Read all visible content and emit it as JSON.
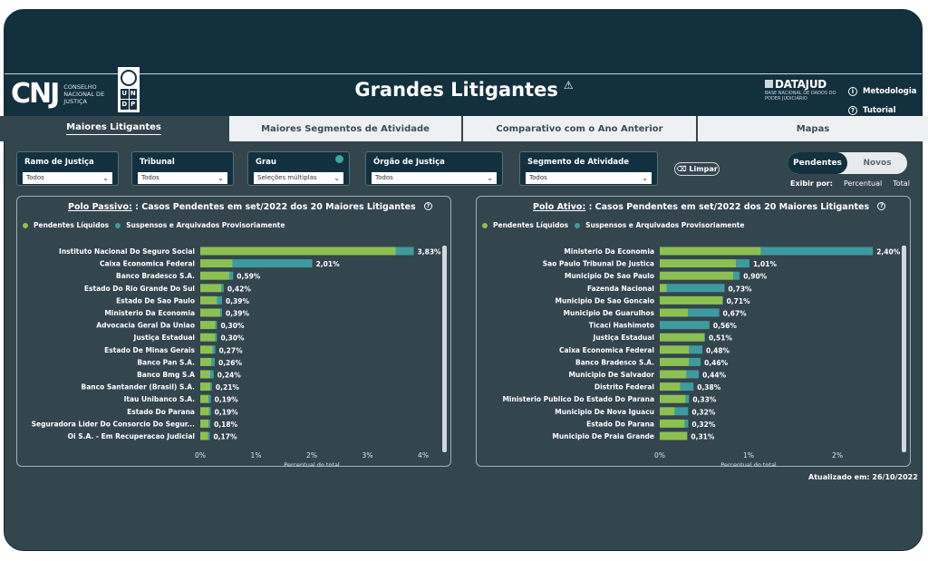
{
  "header": {
    "cnj_mark": "CNJ",
    "cnj_text": "CONSELHO NACIONAL DE JUSTIÇA",
    "undp_letters": [
      "U",
      "N",
      "D",
      "P"
    ],
    "title": "Grandes Litigantes",
    "title_icon": "warning-icon",
    "datajud_brand": "DATAJUD",
    "datajud_sub": "BASE NACIONAL DE DADOS DO PODER JUDICIÁRIO",
    "links": [
      {
        "label": "Metodologia",
        "icon": "info-icon"
      },
      {
        "label": "Tutorial",
        "icon": "help-icon"
      }
    ]
  },
  "tabs": [
    {
      "label": "Maiores Litigantes",
      "active": true
    },
    {
      "label": "Maiores Segmentos de Atividade",
      "active": false
    },
    {
      "label": "Comparativo com o Ano Anterior",
      "active": false
    },
    {
      "label": "Mapas",
      "active": false
    }
  ],
  "filters": [
    {
      "label": "Ramo de Justiça",
      "value": "Todos"
    },
    {
      "label": "Tribunal",
      "value": "Todos"
    },
    {
      "label": "Grau",
      "value": "Seleções múltiplas"
    },
    {
      "label": "Órgão de Justiça",
      "value": "Todos"
    },
    {
      "label": "Segmento de Atividade",
      "value": "Todos"
    }
  ],
  "clear_button": "Limpar",
  "toggle": {
    "options": [
      "Pendentes",
      "Novos"
    ],
    "selected": "Pendentes"
  },
  "exibir": {
    "label": "Exibir por:",
    "options": [
      "Percentual",
      "Total"
    ]
  },
  "colors": {
    "pendentes": "#8cc152",
    "suspensos": "#3d9ba0",
    "panel_bg": "#33454d",
    "header_bg": "#13303f"
  },
  "legend": {
    "pendentes": "Pendentes Líquidos",
    "suspensos": "Suspensos e Arquivados Provisoriamente"
  },
  "xlabel": "Percentual do total",
  "updated": "Atualizado em: 26/10/2022",
  "chart_data": [
    {
      "type": "bar",
      "orientation": "horizontal",
      "stacked": true,
      "title_prefix": "Polo Passivo:",
      "title": ": Casos Pendentes em set/2022 dos 20 Maiores Litigantes",
      "xlabel": "Percentual do total",
      "xlim": [
        0,
        4
      ],
      "xticks": [
        "0%",
        "1%",
        "2%",
        "3%",
        "4%"
      ],
      "categories": [
        "Instituto Nacional Do Seguro Social",
        "Caixa Economica Federal",
        "Banco Bradesco S.A.",
        "Estado Do Rio Grande Do Sul",
        "Estado De Sao Paulo",
        "Ministerio Da Economia",
        "Advocacia Geral Da Uniao",
        "Justiça Estadual",
        "Estado De Minas Gerais",
        "Banco Pan S.A.",
        "Banco Bmg S.A",
        "Banco Santander (Brasil) S.A.",
        "Itau Unibanco S.A.",
        "Estado Do Parana",
        "Seguradora Lider Do Consorcio Do Segur...",
        "Oi S.A. - Em Recuperacao Judicial"
      ],
      "series": [
        {
          "name": "Pendentes Líquidos",
          "values": [
            3.51,
            0.58,
            0.52,
            0.38,
            0.3,
            0.36,
            0.27,
            0.27,
            0.22,
            0.2,
            0.18,
            0.18,
            0.15,
            0.16,
            0.15,
            0.14
          ]
        },
        {
          "name": "Suspensos e Arquivados Provisoriamente",
          "values": [
            0.32,
            1.43,
            0.07,
            0.04,
            0.09,
            0.03,
            0.03,
            0.03,
            0.05,
            0.06,
            0.06,
            0.03,
            0.04,
            0.03,
            0.03,
            0.03
          ]
        }
      ],
      "labels": [
        "3,83%",
        "2,01%",
        "0,59%",
        "0,42%",
        "0,39%",
        "0,39%",
        "0,30%",
        "0,30%",
        "0,27%",
        "0,26%",
        "0,24%",
        "0,21%",
        "0,19%",
        "0,19%",
        "0,18%",
        "0,17%"
      ]
    },
    {
      "type": "bar",
      "orientation": "horizontal",
      "stacked": true,
      "title_prefix": "Polo Ativo:",
      "title": ": Casos Pendentes em set/2022 dos 20 Maiores Litigantes",
      "xlabel": "Percentual do total",
      "xlim": [
        0,
        2.5
      ],
      "xticks": [
        "0%",
        "1%",
        "2%"
      ],
      "categories": [
        "Ministerio Da Economia",
        "Sao Paulo Tribunal De Justica",
        "Municipio De Sao Paulo",
        "Fazenda Nacional",
        "Municipio De Sao Goncalo",
        "Municipio De Guarulhos",
        "Ticaci Hashimoto",
        "Justiça Estadual",
        "Caixa Economica Federal",
        "Banco Bradesco S.A.",
        "Municipio De Salvador",
        "Distrito Federal",
        "Ministerio Publico Do Estado Do Parana",
        "Municipio De Nova Iguacu",
        "Estado Do Parana",
        "Municipio De Praia Grande"
      ],
      "series": [
        {
          "name": "Pendentes Líquidos",
          "values": [
            1.14,
            0.86,
            0.83,
            0.08,
            0.71,
            0.32,
            0.0,
            0.5,
            0.33,
            0.33,
            0.3,
            0.23,
            0.29,
            0.17,
            0.28,
            0.31
          ]
        },
        {
          "name": "Suspensos e Arquivados Provisoriamente",
          "values": [
            1.26,
            0.15,
            0.07,
            0.65,
            0.0,
            0.35,
            0.56,
            0.01,
            0.15,
            0.13,
            0.14,
            0.15,
            0.04,
            0.15,
            0.04,
            0.0
          ]
        }
      ],
      "labels": [
        "2,40%",
        "1,01%",
        "0,90%",
        "0,73%",
        "0,71%",
        "0,67%",
        "0,56%",
        "0,51%",
        "0,48%",
        "0,46%",
        "0,44%",
        "0,38%",
        "0,33%",
        "0,32%",
        "0,32%",
        "0,31%"
      ]
    }
  ]
}
